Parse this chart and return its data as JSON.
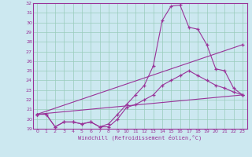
{
  "xlabel": "Windchill (Refroidissement éolien,°C)",
  "bg_color": "#cce8f0",
  "grid_color": "#99ccbb",
  "line_color": "#993399",
  "xlim": [
    -0.5,
    23.5
  ],
  "ylim": [
    19,
    32
  ],
  "yticks": [
    19,
    20,
    21,
    22,
    23,
    24,
    25,
    26,
    27,
    28,
    29,
    30,
    31,
    32
  ],
  "xticks": [
    0,
    1,
    2,
    3,
    4,
    5,
    6,
    7,
    8,
    9,
    10,
    11,
    12,
    13,
    14,
    15,
    16,
    17,
    18,
    19,
    20,
    21,
    22,
    23
  ],
  "series": [
    {
      "x": [
        0,
        1,
        2,
        3,
        4,
        5,
        6,
        7,
        8,
        9,
        10,
        11,
        12,
        13,
        14,
        15,
        16,
        17,
        18,
        19,
        20,
        21,
        22,
        23
      ],
      "y": [
        20.5,
        20.5,
        19.2,
        19.7,
        19.7,
        19.5,
        19.7,
        19.2,
        19.2,
        20.0,
        21.2,
        21.5,
        22.0,
        22.5,
        23.5,
        24.0,
        24.5,
        25.0,
        24.5,
        24.0,
        23.5,
        23.2,
        22.8,
        22.5
      ]
    },
    {
      "x": [
        0,
        1,
        2,
        3,
        4,
        5,
        6,
        7,
        8,
        9,
        10,
        11,
        12,
        13,
        14,
        15,
        16,
        17,
        18,
        19,
        20,
        21,
        22,
        23
      ],
      "y": [
        20.5,
        20.5,
        19.2,
        19.7,
        19.7,
        19.5,
        19.7,
        19.2,
        19.5,
        20.5,
        21.5,
        22.5,
        23.5,
        25.5,
        30.2,
        31.7,
        31.8,
        29.5,
        29.3,
        27.7,
        25.2,
        25.0,
        23.2,
        22.5
      ]
    },
    {
      "x": [
        0,
        23
      ],
      "y": [
        20.5,
        22.5
      ]
    },
    {
      "x": [
        0,
        23
      ],
      "y": [
        20.5,
        27.7
      ]
    }
  ]
}
